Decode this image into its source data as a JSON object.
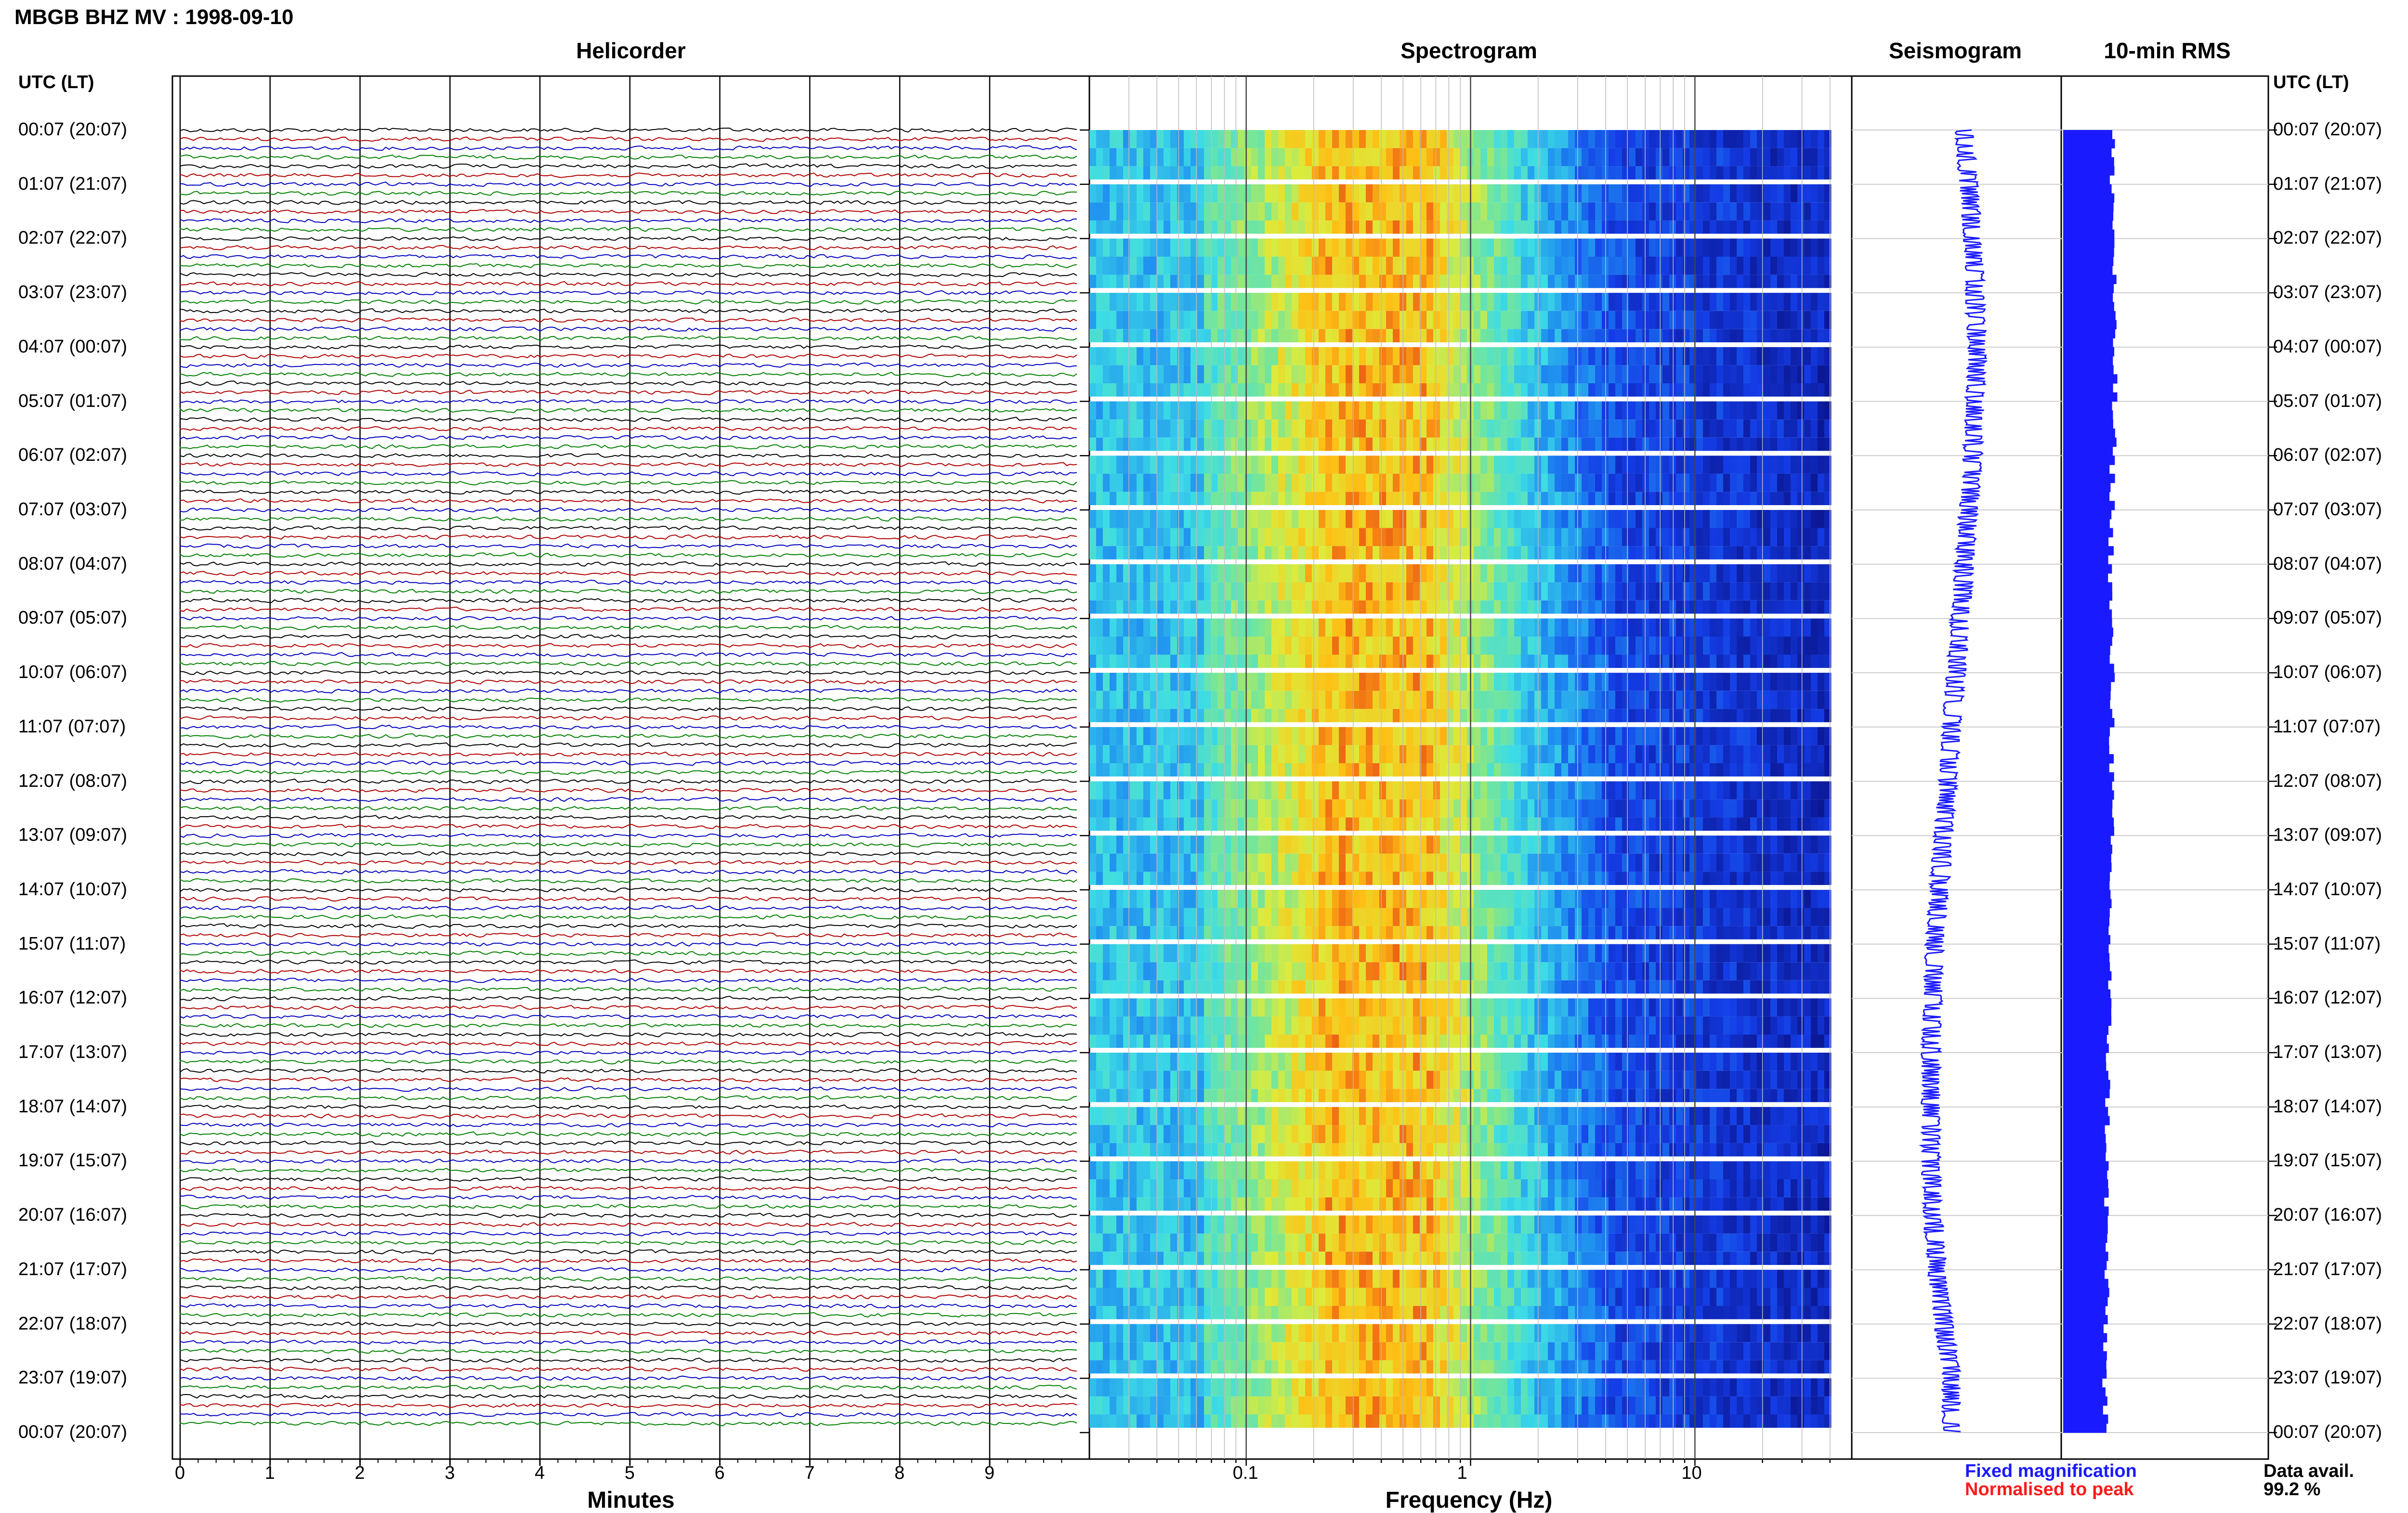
{
  "header": {
    "title": "MBGB BHZ MV : 1998-09-10",
    "utc_label": "UTC (LT)"
  },
  "panels": {
    "helicorder": "Helicorder",
    "spectrogram": "Spectrogram",
    "seismogram": "Seismogram",
    "rms": "10-min RMS"
  },
  "axes": {
    "minutes_label": "Minutes",
    "frequency_label": "Frequency (Hz)",
    "minute_ticks": [
      "0",
      "1",
      "2",
      "3",
      "4",
      "5",
      "6",
      "7",
      "8",
      "9"
    ],
    "frequency_ticks": [
      "0.1",
      "1",
      "10"
    ]
  },
  "legend": {
    "fixed": "Fixed magnification",
    "normalised": "Normalised to peak",
    "fixed_color": "#1a1aff",
    "normalised_color": "#ff1a1a"
  },
  "data_avail": {
    "label": "Data avail.",
    "value": "99.2 %"
  },
  "time_labels": [
    "00:07 (20:07)",
    "01:07 (21:07)",
    "02:07 (22:07)",
    "03:07 (23:07)",
    "04:07 (00:07)",
    "05:07 (01:07)",
    "06:07 (02:07)",
    "07:07 (03:07)",
    "08:07 (04:07)",
    "09:07 (05:07)",
    "10:07 (06:07)",
    "11:07 (07:07)",
    "12:07 (08:07)",
    "13:07 (09:07)",
    "14:07 (10:07)",
    "15:07 (11:07)",
    "16:07 (12:07)",
    "17:07 (13:07)",
    "18:07 (14:07)",
    "19:07 (15:07)",
    "20:07 (16:07)",
    "21:07 (17:07)",
    "22:07 (18:07)",
    "23:07 (19:07)",
    "00:07 (20:07)"
  ],
  "chart_data": {
    "type": "heatmap",
    "trace_colors": [
      "#000000",
      "#b00000",
      "#0000c0",
      "#008000"
    ],
    "helicorder_xlim": [
      0,
      10
    ],
    "spectrogram_xlim": [
      0.02,
      50
    ],
    "spectrogram_scale": "log",
    "rms_profile": [
      0.88,
      0.9,
      0.91,
      0.9,
      0.92,
      0.9,
      0.88,
      0.86,
      0.85,
      0.86,
      0.88,
      0.87,
      0.86,
      0.85,
      0.84,
      0.83,
      0.82,
      0.8,
      0.79,
      0.78,
      0.78,
      0.77,
      0.76,
      0.75
    ],
    "seismogram_offset": [
      0.48,
      0.5,
      0.52,
      0.53,
      0.54,
      0.53,
      0.52,
      0.5,
      0.48,
      0.46,
      0.44,
      0.42,
      0.4,
      0.38,
      0.36,
      0.34,
      0.33,
      0.32,
      0.32,
      0.32,
      0.33,
      0.35,
      0.38,
      0.42
    ]
  }
}
